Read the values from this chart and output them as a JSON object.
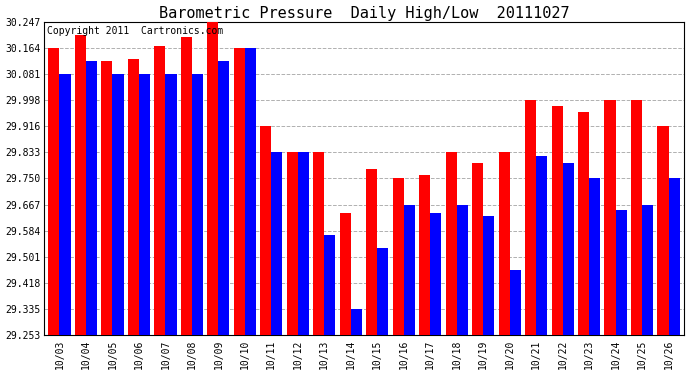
{
  "title": "Barometric Pressure  Daily High/Low  20111027",
  "copyright": "Copyright 2011  Cartronics.com",
  "dates": [
    "10/03",
    "10/04",
    "10/05",
    "10/06",
    "10/07",
    "10/08",
    "10/09",
    "10/10",
    "10/11",
    "10/12",
    "10/13",
    "10/14",
    "10/15",
    "10/16",
    "10/17",
    "10/18",
    "10/19",
    "10/20",
    "10/21",
    "10/22",
    "10/23",
    "10/24",
    "10/25",
    "10/26"
  ],
  "highs": [
    30.164,
    30.205,
    30.122,
    30.13,
    30.17,
    30.2,
    30.247,
    30.164,
    29.916,
    29.833,
    29.833,
    29.64,
    29.78,
    29.75,
    29.76,
    29.833,
    29.8,
    29.833,
    29.998,
    29.98,
    29.96,
    29.998,
    29.998,
    29.916
  ],
  "lows": [
    30.081,
    30.122,
    30.081,
    30.081,
    30.081,
    30.081,
    30.122,
    30.164,
    29.833,
    29.833,
    29.57,
    29.335,
    29.53,
    29.667,
    29.64,
    29.667,
    29.63,
    29.46,
    29.82,
    29.8,
    29.75,
    29.65,
    29.667,
    29.75
  ],
  "high_color": "#ff0000",
  "low_color": "#0000ff",
  "bg_color": "#ffffff",
  "grid_color": "#b0b0b0",
  "yticks": [
    29.253,
    29.335,
    29.418,
    29.501,
    29.584,
    29.667,
    29.75,
    29.833,
    29.916,
    29.998,
    30.081,
    30.164,
    30.247
  ],
  "ymin": 29.253,
  "ymax": 30.247,
  "title_fontsize": 11,
  "copyright_fontsize": 7,
  "tick_fontsize": 7,
  "bar_width": 0.42,
  "figwidth": 6.9,
  "figheight": 3.75,
  "dpi": 100
}
